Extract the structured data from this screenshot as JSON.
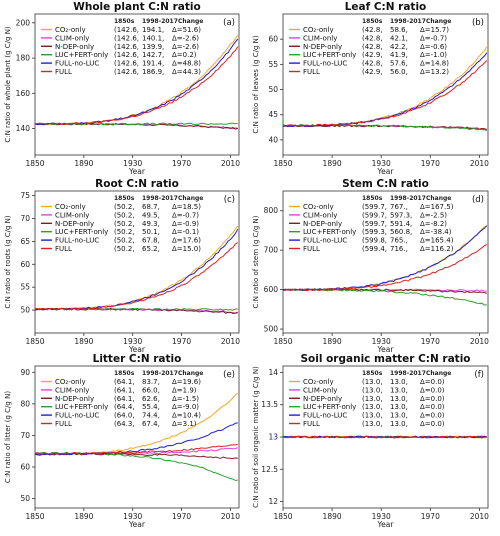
{
  "figure": {
    "column_headers": [
      "1850s",
      "1998-2017",
      "Change"
    ],
    "x_axis": {
      "label": "Year",
      "range": [
        1850,
        2017
      ],
      "ticks": [
        1850,
        1890,
        1930,
        1970,
        2010
      ]
    }
  },
  "series_styles": [
    {
      "name": "CO₂-only",
      "color": "#f5a623"
    },
    {
      "name": "CLIM-only",
      "color": "#e040e0"
    },
    {
      "name": "N-DEP-only",
      "color": "#7a1f1f"
    },
    {
      "name": "LUC+FERT-only",
      "color": "#2ca02c"
    },
    {
      "name": "FULL-no-LUC",
      "color": "#1f1fd0"
    },
    {
      "name": "FULL",
      "color": "#e02020"
    }
  ],
  "chart_data": [
    {
      "type": "line",
      "title": "Whole plant C:N ratio",
      "panel_label": "(a)",
      "ylabel": "C:N ratio of whole plant (g C/g N)",
      "ylim": [
        125,
        205
      ],
      "yticks": [
        140,
        160,
        180,
        200
      ],
      "series": [
        {
          "name": "CO₂-only",
          "start": 142.6,
          "end": 194.1,
          "change": 51.6,
          "stats": [
            "(142.6,",
            "194.1,",
            "Δ=51.6)"
          ]
        },
        {
          "name": "CLIM-only",
          "start": 142.6,
          "end": 140.1,
          "change": -2.6,
          "stats": [
            "(142.6,",
            "140.1,",
            "Δ=-2.6)"
          ]
        },
        {
          "name": "N-DEP-only",
          "start": 142.6,
          "end": 139.9,
          "change": -2.6,
          "stats": [
            "(142.6,",
            "139.9,",
            "Δ=-2.6)"
          ]
        },
        {
          "name": "LUC+FERT-only",
          "start": 142.6,
          "end": 142.7,
          "change": 0.2,
          "stats": [
            "(142.6,",
            "142.7,",
            "Δ=0.2)"
          ]
        },
        {
          "name": "FULL-no-LUC",
          "start": 142.6,
          "end": 191.4,
          "change": 48.8,
          "stats": [
            "(142.6,",
            "191.4,",
            "Δ=48.8)"
          ]
        },
        {
          "name": "FULL",
          "start": 142.6,
          "end": 186.9,
          "change": 44.3,
          "stats": [
            "(142.6,",
            "186.9,",
            "Δ=44.3)"
          ]
        }
      ]
    },
    {
      "type": "line",
      "title": "Leaf C:N ratio",
      "panel_label": "(b)",
      "ylabel": "C:N ratio of leaves (g C/g N)",
      "ylim": [
        37,
        65
      ],
      "yticks": [
        40,
        45,
        50,
        55,
        60
      ],
      "series": [
        {
          "name": "CO₂-only",
          "start": 42.8,
          "end": 58.6,
          "change": 15.7,
          "stats": [
            "(42.8,",
            "58.6,",
            "Δ=15.7)"
          ]
        },
        {
          "name": "CLIM-only",
          "start": 42.8,
          "end": 42.1,
          "change": -0.7,
          "stats": [
            "(42.8,",
            "42.1,",
            "Δ=-0.7)"
          ]
        },
        {
          "name": "N-DEP-only",
          "start": 42.8,
          "end": 42.2,
          "change": -0.6,
          "stats": [
            "(42.8,",
            "42.2,",
            "Δ=-0.6)"
          ]
        },
        {
          "name": "LUC+FERT-only",
          "start": 42.9,
          "end": 41.9,
          "change": -1.0,
          "stats": [
            "(42.9,",
            "41.9,",
            "Δ=-1.0)"
          ]
        },
        {
          "name": "FULL-no-LUC",
          "start": 42.8,
          "end": 57.6,
          "change": 14.8,
          "stats": [
            "(42.8,",
            "57.6,",
            "Δ=14.8)"
          ]
        },
        {
          "name": "FULL",
          "start": 42.9,
          "end": 56.0,
          "change": 13.2,
          "stats": [
            "(42.9,",
            "56.0,",
            "Δ=13.2)"
          ]
        }
      ]
    },
    {
      "type": "line",
      "title": "Root C:N ratio",
      "panel_label": "(c)",
      "ylabel": "C:N ratio of roots (g C/g N)",
      "ylim": [
        45,
        76
      ],
      "yticks": [
        50,
        55,
        60,
        65,
        70,
        75
      ],
      "series": [
        {
          "name": "CO₂-only",
          "start": 50.2,
          "end": 68.7,
          "change": 18.5,
          "stats": [
            "(50.2,",
            "68.7,",
            "Δ=18.5)"
          ]
        },
        {
          "name": "CLIM-only",
          "start": 50.2,
          "end": 49.5,
          "change": -0.7,
          "stats": [
            "(50.2,",
            "49.5,",
            "Δ=-0.7)"
          ]
        },
        {
          "name": "N-DEP-only",
          "start": 50.2,
          "end": 49.3,
          "change": -0.9,
          "stats": [
            "(50.2,",
            "49.3,",
            "Δ=-0.9)"
          ]
        },
        {
          "name": "LUC+FERT-only",
          "start": 50.2,
          "end": 50.1,
          "change": -0.1,
          "stats": [
            "(50.2,",
            "50.1,",
            "Δ=-0.1)"
          ]
        },
        {
          "name": "FULL-no-LUC",
          "start": 50.2,
          "end": 67.8,
          "change": 17.6,
          "stats": [
            "(50.2,",
            "67.8,",
            "Δ=17.6)"
          ]
        },
        {
          "name": "FULL",
          "start": 50.2,
          "end": 65.2,
          "change": 15.0,
          "stats": [
            "(50.2,",
            "65.2,",
            "Δ=15.0)"
          ]
        }
      ]
    },
    {
      "type": "line",
      "title": "Stem C:N ratio",
      "panel_label": "(d)",
      "ylabel": "C:N ratio of stem (g C/g N)",
      "ylim": [
        490,
        850
      ],
      "yticks": [
        500,
        600,
        700,
        800
      ],
      "series": [
        {
          "name": "CO₂-only",
          "start": 599.7,
          "end": 767.0,
          "change": 167.5,
          "stats": [
            "(599.7,",
            "767.,",
            "Δ=167.5)"
          ]
        },
        {
          "name": "CLIM-only",
          "start": 599.7,
          "end": 597.3,
          "change": -2.5,
          "stats": [
            "(599.7,",
            "597.3,",
            "Δ=-2.5)"
          ]
        },
        {
          "name": "N-DEP-only",
          "start": 599.7,
          "end": 591.4,
          "change": -8.2,
          "stats": [
            "(599.7,",
            "591.4,",
            "Δ=-8.2)"
          ]
        },
        {
          "name": "LUC+FERT-only",
          "start": 599.3,
          "end": 560.8,
          "change": -38.4,
          "stats": [
            "(599.3,",
            "560.8,",
            "Δ=-38.4)"
          ]
        },
        {
          "name": "FULL-no-LUC",
          "start": 599.8,
          "end": 765.0,
          "change": 165.4,
          "stats": [
            "(599.8,",
            "765.,",
            "Δ=165.4)"
          ]
        },
        {
          "name": "FULL",
          "start": 599.4,
          "end": 716.0,
          "change": 116.2,
          "stats": [
            "(599.4,",
            "716.,",
            "Δ=116.2)"
          ]
        }
      ]
    },
    {
      "type": "line",
      "title": "Litter C:N ratio",
      "panel_label": "(e)",
      "ylabel": "C:N ratio of litter (g C/g N)",
      "ylim": [
        47,
        92
      ],
      "yticks": [
        50,
        60,
        70,
        80,
        90
      ],
      "series": [
        {
          "name": "CO₂-only",
          "start": 64.1,
          "end": 83.7,
          "change": 19.6,
          "stats": [
            "(64.1,",
            "83.7,",
            "Δ=19.6)"
          ]
        },
        {
          "name": "CLIM-only",
          "start": 64.1,
          "end": 66.0,
          "change": 1.9,
          "stats": [
            "(64.1,",
            "66.0,",
            "Δ=1.9)"
          ]
        },
        {
          "name": "N-DEP-only",
          "start": 64.1,
          "end": 62.6,
          "change": -1.5,
          "stats": [
            "(64.1,",
            "62.6,",
            "Δ=-1.5)"
          ]
        },
        {
          "name": "LUC+FERT-only",
          "start": 64.4,
          "end": 55.4,
          "change": -9.0,
          "stats": [
            "(64.4,",
            "55.4,",
            "Δ=-9.0)"
          ]
        },
        {
          "name": "FULL-no-LUC",
          "start": 64.0,
          "end": 74.4,
          "change": 10.4,
          "stats": [
            "(64.0,",
            "74.4,",
            "Δ=10.4)"
          ]
        },
        {
          "name": "FULL",
          "start": 64.3,
          "end": 67.4,
          "change": 3.1,
          "stats": [
            "(64.3,",
            "67.4,",
            "Δ=3.1)"
          ]
        }
      ]
    },
    {
      "type": "line",
      "title": "Soil organic matter C:N ratio",
      "panel_label": "(f)",
      "ylabel": "C:N ratio of soil organic matter (g C/g N)",
      "ylim": [
        11.9,
        14.1
      ],
      "yticks": [
        12.0,
        12.5,
        13.0,
        13.5,
        14.0
      ],
      "series": [
        {
          "name": "CO₂-only",
          "start": 13.0,
          "end": 13.0,
          "change": 0.0,
          "stats": [
            "(13.0,",
            "13.0,",
            "Δ=0.0)"
          ]
        },
        {
          "name": "CLIM-only",
          "start": 13.0,
          "end": 13.0,
          "change": 0.0,
          "stats": [
            "(13.0,",
            "13.0,",
            "Δ=0.0)"
          ]
        },
        {
          "name": "N-DEP-only",
          "start": 13.0,
          "end": 13.0,
          "change": 0.0,
          "stats": [
            "(13.0,",
            "13.0,",
            "Δ=0.0)"
          ]
        },
        {
          "name": "LUC+FERT-only",
          "start": 13.0,
          "end": 13.0,
          "change": 0.0,
          "stats": [
            "(13.0,",
            "13.0,",
            "Δ=0.0)"
          ]
        },
        {
          "name": "FULL-no-LUC",
          "start": 13.0,
          "end": 13.0,
          "change": 0.0,
          "stats": [
            "(13.0,",
            "13.0,",
            "Δ=0.0)"
          ]
        },
        {
          "name": "FULL",
          "start": 13.0,
          "end": 13.0,
          "change": 0.0,
          "stats": [
            "(13.0,",
            "13.0,",
            "Δ=0.0)"
          ]
        }
      ]
    }
  ]
}
